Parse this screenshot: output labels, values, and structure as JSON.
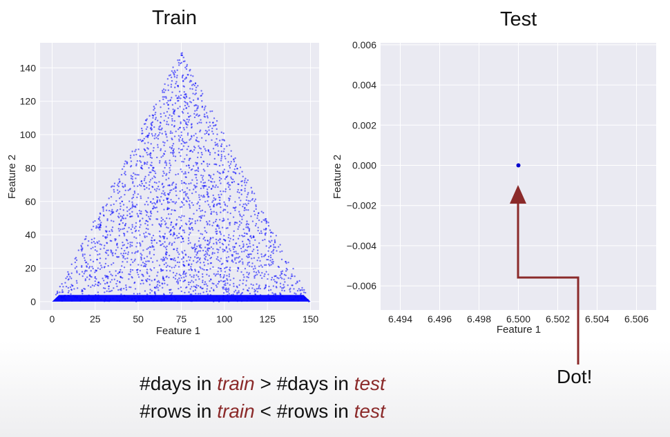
{
  "chart_data": [
    {
      "type": "scatter",
      "title": "Train",
      "xlabel": "Feature 1",
      "ylabel": "Feature 2",
      "xlim": [
        -7,
        155
      ],
      "ylim": [
        -5,
        155
      ],
      "xticks": [
        "0",
        "25",
        "50",
        "75",
        "100",
        "125",
        "150"
      ],
      "yticks": [
        "0",
        "20",
        "40",
        "60",
        "80",
        "100",
        "120",
        "140"
      ],
      "x_tick_values": [
        0,
        25,
        50,
        75,
        100,
        125,
        150
      ],
      "y_tick_values": [
        0,
        20,
        40,
        60,
        80,
        100,
        120,
        140
      ],
      "grid": true,
      "point_color": "#0000ff",
      "shape": "triangle",
      "vertices": [
        [
          0,
          0
        ],
        [
          75,
          150
        ],
        [
          150,
          0
        ]
      ]
    },
    {
      "type": "scatter",
      "title": "Test",
      "xlabel": "Feature 1",
      "ylabel": "Feature 2",
      "xlim": [
        6.493,
        6.507
      ],
      "ylim": [
        -0.0072,
        0.0061
      ],
      "xticks": [
        "6.494",
        "6.496",
        "6.498",
        "6.500",
        "6.502",
        "6.504",
        "6.506"
      ],
      "yticks": [
        "0.006",
        "0.004",
        "0.002",
        "0.000",
        "−0.002",
        "−0.004",
        "−0.006"
      ],
      "x_tick_values": [
        6.494,
        6.496,
        6.498,
        6.5,
        6.502,
        6.504,
        6.506
      ],
      "y_tick_values": [
        0.006,
        0.004,
        0.002,
        0.0,
        -0.002,
        -0.004,
        -0.006
      ],
      "grid": true,
      "point_color": "#0000cc",
      "points": [
        [
          6.5,
          0.0
        ]
      ]
    }
  ],
  "annotation": {
    "label": "Dot!",
    "arrow_color": "#8b2a2a"
  },
  "caption": {
    "line1": {
      "a": "#days in ",
      "b": "train",
      "c": " > #days in ",
      "d": "test"
    },
    "line2": {
      "a": "#rows in ",
      "b": "train",
      "c": " < #rows in ",
      "d": "test"
    },
    "emphasis_color": "#8b2a2a"
  }
}
